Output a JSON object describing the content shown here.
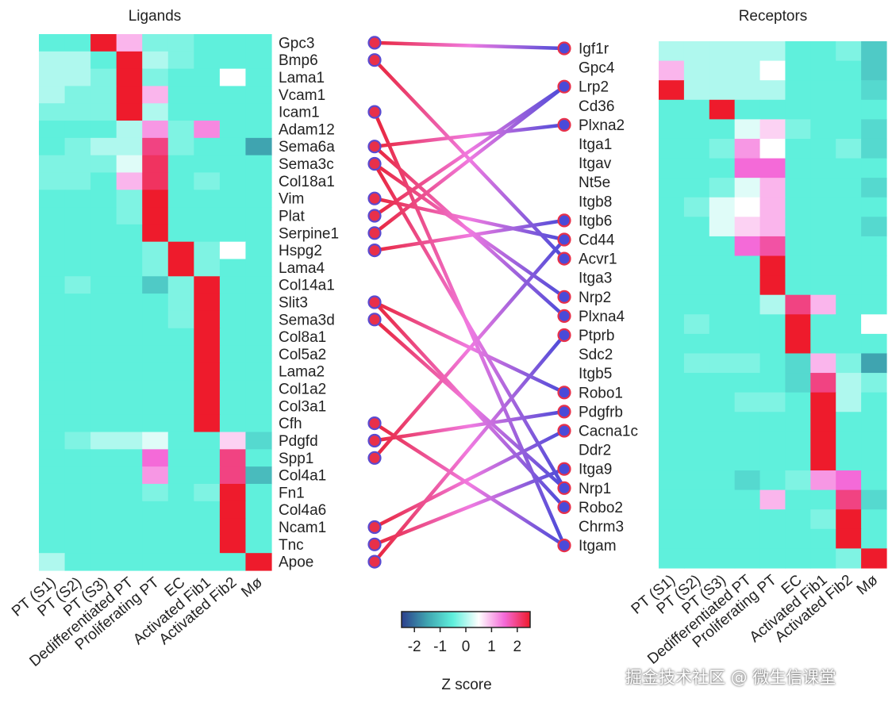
{
  "chart_data": {
    "type": "heatmap",
    "ligand_panel": {
      "title": "Ligands",
      "columns": [
        "PT (S1)",
        "PT (S2)",
        "PT (S3)",
        "Dedifferentiated PT",
        "Proliferating PT",
        "EC",
        "Activated Fib1",
        "Activated Fib2",
        "Mø"
      ],
      "rows": [
        "Gpc3",
        "Bmp6",
        "Lama1",
        "Vcam1",
        "Icam1",
        "Adam12",
        "Sema6a",
        "Sema3c",
        "Col18a1",
        "Vim",
        "Plat",
        "Serpine1",
        "Hspg2",
        "Lama4",
        "Col14a1",
        "Slit3",
        "Sema3d",
        "Col8a1",
        "Col5a2",
        "Lama2",
        "Col1a2",
        "Col3a1",
        "Cfh",
        "Pdgfd",
        "Spp1",
        "Col4a1",
        "Fn1",
        "Col4a6",
        "Ncam1",
        "Tnc",
        "Apoe"
      ],
      "values": [
        [
          -0.5,
          -0.5,
          2.5,
          1.0,
          -0.3,
          -0.3,
          -0.5,
          -0.5,
          -0.5
        ],
        [
          0.0,
          0.0,
          -0.5,
          2.5,
          0.0,
          -0.3,
          -0.5,
          -0.5,
          -0.5
        ],
        [
          0.0,
          0.0,
          -0.3,
          2.5,
          -0.3,
          -0.5,
          -0.5,
          0.5,
          -0.5
        ],
        [
          0.0,
          -0.3,
          -0.3,
          2.5,
          1.0,
          -0.5,
          -0.5,
          -0.5,
          -0.5
        ],
        [
          -0.3,
          -0.3,
          -0.3,
          2.5,
          0.0,
          -0.5,
          -0.5,
          -0.5,
          -0.5
        ],
        [
          -0.5,
          -0.5,
          -0.5,
          0.0,
          1.2,
          -0.3,
          1.3,
          -0.5,
          -0.5
        ],
        [
          -0.5,
          -0.3,
          0.0,
          0.0,
          2.0,
          -0.3,
          -0.5,
          -0.5,
          -1.5
        ],
        [
          -0.3,
          -0.3,
          -0.3,
          0.3,
          2.2,
          -0.5,
          -0.5,
          -0.5,
          -0.5
        ],
        [
          -0.3,
          -0.3,
          -0.5,
          1.0,
          2.2,
          -0.5,
          -0.3,
          -0.5,
          -0.5
        ],
        [
          -0.5,
          -0.5,
          -0.5,
          -0.3,
          2.5,
          -0.5,
          -0.5,
          -0.5,
          -0.5
        ],
        [
          -0.5,
          -0.5,
          -0.5,
          -0.3,
          2.5,
          -0.5,
          -0.5,
          -0.5,
          -0.5
        ],
        [
          -0.5,
          -0.5,
          -0.5,
          -0.5,
          2.5,
          -0.5,
          -0.5,
          -0.5,
          -0.5
        ],
        [
          -0.5,
          -0.5,
          -0.5,
          -0.5,
          -0.3,
          2.5,
          -0.3,
          0.5,
          -0.5
        ],
        [
          -0.5,
          -0.5,
          -0.5,
          -0.5,
          -0.3,
          2.5,
          -0.3,
          -0.5,
          -0.5
        ],
        [
          -0.5,
          -0.3,
          -0.5,
          -0.5,
          -1.0,
          -0.3,
          2.5,
          -0.5,
          -0.5
        ],
        [
          -0.5,
          -0.5,
          -0.5,
          -0.5,
          -0.5,
          -0.3,
          2.5,
          -0.5,
          -0.5
        ],
        [
          -0.5,
          -0.5,
          -0.5,
          -0.5,
          -0.5,
          -0.3,
          2.5,
          -0.5,
          -0.5
        ],
        [
          -0.5,
          -0.5,
          -0.5,
          -0.5,
          -0.5,
          -0.5,
          2.5,
          -0.5,
          -0.5
        ],
        [
          -0.5,
          -0.5,
          -0.5,
          -0.5,
          -0.5,
          -0.5,
          2.5,
          -0.5,
          -0.5
        ],
        [
          -0.5,
          -0.5,
          -0.5,
          -0.5,
          -0.5,
          -0.5,
          2.5,
          -0.5,
          -0.5
        ],
        [
          -0.5,
          -0.5,
          -0.5,
          -0.5,
          -0.5,
          -0.5,
          2.5,
          -0.5,
          -0.5
        ],
        [
          -0.5,
          -0.5,
          -0.5,
          -0.5,
          -0.5,
          -0.5,
          2.5,
          -0.5,
          -0.5
        ],
        [
          -0.5,
          -0.5,
          -0.5,
          -0.5,
          -0.5,
          -0.5,
          2.5,
          -0.5,
          -0.5
        ],
        [
          -0.5,
          -0.3,
          0.0,
          0.0,
          0.3,
          -0.5,
          -0.5,
          0.8,
          -0.8
        ],
        [
          -0.5,
          -0.5,
          -0.5,
          -0.5,
          1.5,
          -0.5,
          -0.5,
          2.0,
          -0.5
        ],
        [
          -0.5,
          -0.5,
          -0.5,
          -0.5,
          1.2,
          -0.5,
          -0.5,
          2.0,
          -1.2
        ],
        [
          -0.5,
          -0.5,
          -0.5,
          -0.5,
          -0.3,
          -0.5,
          -0.3,
          2.5,
          -0.5
        ],
        [
          -0.5,
          -0.5,
          -0.5,
          -0.5,
          -0.5,
          -0.5,
          -0.5,
          2.5,
          -0.5
        ],
        [
          -0.5,
          -0.5,
          -0.5,
          -0.5,
          -0.5,
          -0.5,
          -0.5,
          2.5,
          -0.5
        ],
        [
          -0.5,
          -0.5,
          -0.5,
          -0.5,
          -0.5,
          -0.5,
          -0.5,
          2.5,
          -0.5
        ],
        [
          0.0,
          -0.5,
          -0.5,
          -0.5,
          -0.5,
          -0.5,
          -0.5,
          -0.5,
          2.5
        ]
      ]
    },
    "receptor_panel": {
      "title": "Receptors",
      "columns": [
        "PT (S1)",
        "PT (S2)",
        "PT (S3)",
        "Dedifferentiated PT",
        "Proliferating PT",
        "EC",
        "Activated Fib1",
        "Activated Fib2",
        "Mø"
      ],
      "rows": [
        "Igf1r",
        "Gpc4",
        "Lrp2",
        "Cd36",
        "Plxna2",
        "Itga1",
        "Itgav",
        "Nt5e",
        "Itgb8",
        "Itgb6",
        "Cd44",
        "Acvr1",
        "Itga3",
        "Nrp2",
        "Plxna4",
        "Ptprb",
        "Sdc2",
        "Itgb5",
        "Robo1",
        "Pdgfrb",
        "Cacna1c",
        "Ddr2",
        "Itga9",
        "Nrp1",
        "Robo2",
        "Chrm3",
        "Itgam"
      ],
      "values": [
        [
          0.0,
          0.0,
          0.0,
          0.0,
          0.0,
          -0.5,
          -0.5,
          -0.3,
          -1.0
        ],
        [
          1.0,
          0.0,
          0.0,
          0.0,
          0.5,
          -0.5,
          -0.5,
          -0.5,
          -1.0
        ],
        [
          2.5,
          0.0,
          0.0,
          0.0,
          0.0,
          -0.5,
          -0.5,
          -0.5,
          -0.8
        ],
        [
          -0.5,
          -0.5,
          2.5,
          -0.5,
          -0.5,
          -0.5,
          -0.5,
          -0.5,
          -0.5
        ],
        [
          -0.5,
          -0.5,
          -0.5,
          0.3,
          0.8,
          -0.3,
          -0.5,
          -0.5,
          -0.8
        ],
        [
          -0.5,
          -0.5,
          -0.3,
          1.2,
          0.5,
          -0.5,
          -0.5,
          -0.3,
          -0.8
        ],
        [
          -0.5,
          -0.5,
          -0.5,
          1.5,
          1.5,
          -0.5,
          -0.5,
          -0.5,
          -0.5
        ],
        [
          -0.5,
          -0.5,
          -0.3,
          0.3,
          1.0,
          -0.5,
          -0.5,
          -0.5,
          -0.8
        ],
        [
          -0.5,
          -0.3,
          0.3,
          0.5,
          1.0,
          -0.5,
          -0.5,
          -0.5,
          -0.5
        ],
        [
          -0.5,
          -0.5,
          0.3,
          0.8,
          1.0,
          -0.5,
          -0.5,
          -0.5,
          -0.8
        ],
        [
          -0.5,
          -0.5,
          -0.5,
          1.5,
          1.8,
          -0.5,
          -0.5,
          -0.5,
          -0.5
        ],
        [
          -0.5,
          -0.5,
          -0.5,
          -0.5,
          2.5,
          -0.5,
          -0.5,
          -0.5,
          -0.5
        ],
        [
          -0.5,
          -0.5,
          -0.5,
          -0.5,
          2.5,
          -0.5,
          -0.5,
          -0.5,
          -0.5
        ],
        [
          -0.5,
          -0.5,
          -0.5,
          -0.5,
          0.0,
          2.0,
          1.0,
          -0.5,
          -0.5
        ],
        [
          -0.5,
          -0.3,
          -0.5,
          -0.5,
          -0.5,
          2.5,
          -0.5,
          -0.5,
          0.5
        ],
        [
          -0.5,
          -0.5,
          -0.5,
          -0.5,
          -0.5,
          2.5,
          -0.5,
          -0.5,
          -0.5
        ],
        [
          -0.5,
          -0.3,
          -0.3,
          -0.3,
          -0.5,
          -0.8,
          1.0,
          -0.3,
          -1.5
        ],
        [
          -0.5,
          -0.5,
          -0.5,
          -0.5,
          -0.5,
          -0.8,
          2.0,
          0.0,
          -0.3
        ],
        [
          -0.5,
          -0.5,
          -0.5,
          -0.3,
          -0.3,
          -0.5,
          2.5,
          0.0,
          -0.5
        ],
        [
          -0.5,
          -0.5,
          -0.5,
          -0.5,
          -0.5,
          -0.5,
          2.5,
          -0.5,
          -0.5
        ],
        [
          -0.5,
          -0.5,
          -0.5,
          -0.5,
          -0.5,
          -0.5,
          2.5,
          -0.5,
          -0.5
        ],
        [
          -0.5,
          -0.5,
          -0.5,
          -0.5,
          -0.5,
          -0.5,
          2.5,
          -0.5,
          -0.5
        ],
        [
          -0.5,
          -0.5,
          -0.5,
          -0.8,
          -0.5,
          -0.3,
          1.2,
          1.5,
          -0.5
        ],
        [
          -0.5,
          -0.5,
          -0.5,
          -0.5,
          1.0,
          -0.5,
          -0.5,
          2.0,
          -0.8
        ],
        [
          -0.5,
          -0.5,
          -0.5,
          -0.5,
          -0.5,
          -0.5,
          -0.3,
          2.5,
          -0.5
        ],
        [
          -0.5,
          -0.5,
          -0.5,
          -0.5,
          -0.5,
          -0.5,
          -0.5,
          2.5,
          -0.5
        ],
        [
          -0.5,
          -0.5,
          -0.5,
          -0.5,
          -0.5,
          -0.5,
          -0.5,
          -0.3,
          2.5
        ]
      ]
    },
    "connections": [
      {
        "ligand": "Gpc3",
        "receptor": "Igf1r"
      },
      {
        "ligand": "Bmp6",
        "receptor": "Acvr1"
      },
      {
        "ligand": "Icam1",
        "receptor": "Itgam"
      },
      {
        "ligand": "Sema6a",
        "receptor": "Plxna2"
      },
      {
        "ligand": "Sema6a",
        "receptor": "Plxna4"
      },
      {
        "ligand": "Sema3c",
        "receptor": "Nrp2"
      },
      {
        "ligand": "Sema3c",
        "receptor": "Nrp1"
      },
      {
        "ligand": "Vim",
        "receptor": "Cd44"
      },
      {
        "ligand": "Plat",
        "receptor": "Lrp2"
      },
      {
        "ligand": "Serpine1",
        "receptor": "Lrp2"
      },
      {
        "ligand": "Hspg2",
        "receptor": "Itgb6"
      },
      {
        "ligand": "Slit3",
        "receptor": "Robo1"
      },
      {
        "ligand": "Slit3",
        "receptor": "Robo2"
      },
      {
        "ligand": "Sema3d",
        "receptor": "Nrp1"
      },
      {
        "ligand": "Cfh",
        "receptor": "Itgam"
      },
      {
        "ligand": "Pdgfd",
        "receptor": "Pdgfrb"
      },
      {
        "ligand": "Spp1",
        "receptor": "Cd44"
      },
      {
        "ligand": "Ncam1",
        "receptor": "Cacna1c"
      },
      {
        "ligand": "Tnc",
        "receptor": "Itga9"
      },
      {
        "ligand": "Apoe",
        "receptor": "Ptprb"
      }
    ],
    "colorbar": {
      "label": "Z score",
      "range": [
        -2.5,
        2.5
      ],
      "ticks": [
        -2,
        -1,
        0,
        1,
        2
      ],
      "colors": [
        "#2c3f8c",
        "#3fa4b0",
        "#5ff0dc",
        "#ffffff",
        "#f46ad8",
        "#ee1b2c"
      ]
    },
    "link_colors": {
      "ligand_end": "#e8243a",
      "receptor_end": "#4a4ad8",
      "node_fill": "#e8304a",
      "node_stroke": "#5a4ad0"
    }
  },
  "watermark": "掘金技术社区 @ 微生信课堂"
}
